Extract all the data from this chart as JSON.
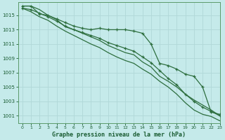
{
  "xlabel": "Graphe pression niveau de la mer (hPa)",
  "background_color": "#c5eaea",
  "grid_color": "#b0d8d8",
  "line_color": "#2d6e3e",
  "text_color": "#1a5c32",
  "spine_color": "#5a9a6a",
  "xlim": [
    -0.5,
    23
  ],
  "ylim": [
    1000.0,
    1016.8
  ],
  "yticks": [
    1001,
    1003,
    1005,
    1007,
    1009,
    1011,
    1013,
    1015
  ],
  "xticks": [
    0,
    1,
    2,
    3,
    4,
    5,
    6,
    7,
    8,
    9,
    10,
    11,
    12,
    13,
    14,
    15,
    16,
    17,
    18,
    19,
    20,
    21,
    22,
    23
  ],
  "hours": [
    0,
    1,
    2,
    3,
    4,
    5,
    6,
    7,
    8,
    9,
    10,
    11,
    12,
    13,
    14,
    15,
    16,
    17,
    18,
    19,
    20,
    21,
    22,
    23
  ],
  "series_sharp": [
    1016.3,
    1016.3,
    1015.2,
    1015.0,
    1014.5,
    1014.0,
    1013.5,
    1013.2,
    1013.0,
    1013.2,
    1013.0,
    1013.0,
    1013.0,
    1012.8,
    1012.5,
    1011.0,
    1008.3,
    1008.0,
    1007.5,
    1006.8,
    1006.5,
    1005.0,
    1001.5,
    1001.2
  ],
  "series_mid1": [
    1016.3,
    1016.3,
    1015.8,
    1015.0,
    1014.4,
    1013.4,
    1013.0,
    1012.5,
    1012.0,
    1011.5,
    1010.8,
    1010.3,
    1009.8,
    1009.5,
    1008.5,
    1007.8,
    1006.5,
    1005.8,
    1005.0,
    1004.0,
    1003.2,
    1002.5,
    1001.8,
    1001.0
  ],
  "series_mid2": [
    1016.0,
    1015.8,
    1015.3,
    1014.8,
    1014.2,
    1013.5,
    1013.0,
    1012.6,
    1012.2,
    1011.8,
    1011.2,
    1010.8,
    1010.4,
    1010.0,
    1009.2,
    1008.4,
    1007.3,
    1006.2,
    1005.3,
    1004.0,
    1003.0,
    1002.2,
    1001.6,
    1001.0
  ],
  "series_low": [
    1016.0,
    1015.5,
    1014.8,
    1014.3,
    1013.5,
    1012.8,
    1012.2,
    1011.6,
    1011.0,
    1010.5,
    1009.8,
    1009.2,
    1008.7,
    1008.3,
    1007.5,
    1006.8,
    1005.8,
    1005.0,
    1004.0,
    1002.8,
    1001.8,
    1001.2,
    1000.9,
    1000.3
  ]
}
